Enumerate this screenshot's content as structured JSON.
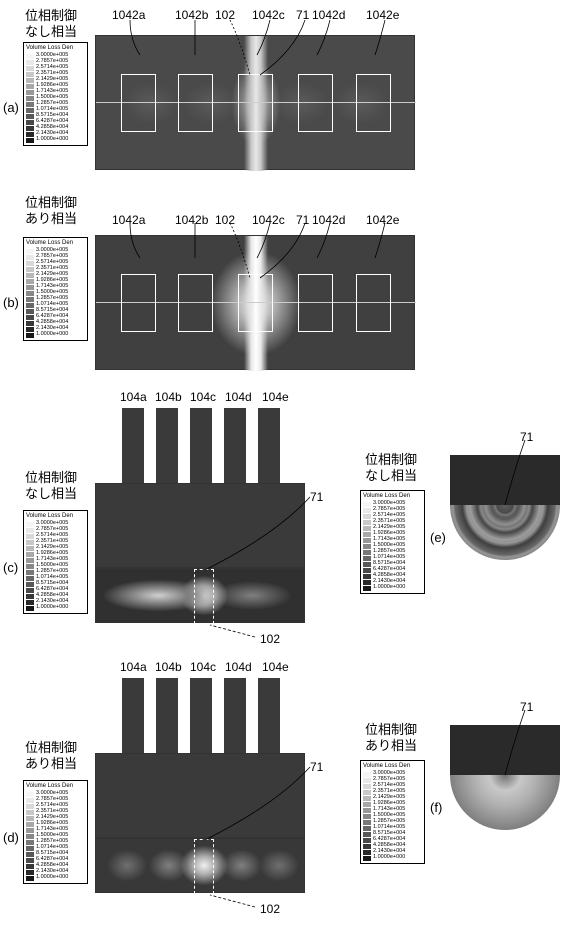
{
  "legend": {
    "title": "Volume Loss Den",
    "entries": [
      {
        "val": "3.0000e+005",
        "color": "#f5f5f5"
      },
      {
        "val": "2.7857e+005",
        "color": "#e8e8e8"
      },
      {
        "val": "2.5714e+005",
        "color": "#d8d8d8"
      },
      {
        "val": "2.3571e+005",
        "color": "#c8c8c8"
      },
      {
        "val": "2.1429e+005",
        "color": "#b8b8b8"
      },
      {
        "val": "1.9286e+005",
        "color": "#a8a8a8"
      },
      {
        "val": "1.7143e+005",
        "color": "#989898"
      },
      {
        "val": "1.5000e+005",
        "color": "#888888"
      },
      {
        "val": "1.2857e+005",
        "color": "#787878"
      },
      {
        "val": "1.0714e+005",
        "color": "#686868"
      },
      {
        "val": "8.5715e+004",
        "color": "#585858"
      },
      {
        "val": "6.4287e+004",
        "color": "#484848"
      },
      {
        "val": "4.2858e+004",
        "color": "#383838"
      },
      {
        "val": "2.1430e+004",
        "color": "#282828"
      },
      {
        "val": "1.0000e+000",
        "color": "#181818"
      }
    ]
  },
  "titles": {
    "noPhase": "位相制御\nなし相当",
    "withPhase": "位相制御\nあり相当"
  },
  "panels": {
    "a": {
      "label": "(a)",
      "topLabels": [
        "1042a",
        "1042b",
        "102",
        "1042c",
        "71",
        "1042d",
        "1042e"
      ],
      "rectCount": 5,
      "bg": "#4a4a4a",
      "centerBright": true
    },
    "b": {
      "label": "(b)",
      "topLabels": [
        "1042a",
        "1042b",
        "102",
        "1042c",
        "71",
        "1042d",
        "1042e"
      ],
      "rectCount": 5,
      "bg": "#404040",
      "centerBright": true
    },
    "c": {
      "label": "(c)",
      "topLabels": [
        "104a",
        "104b",
        "104c",
        "104d",
        "104e"
      ],
      "ptr71": "71",
      "ptr102": "102",
      "barCount": 5
    },
    "d": {
      "label": "(d)",
      "topLabels": [
        "104a",
        "104b",
        "104c",
        "104d",
        "104e"
      ],
      "ptr71": "71",
      "ptr102": "102",
      "barCount": 5
    },
    "e": {
      "label": "(e)",
      "ptr71": "71"
    },
    "f": {
      "label": "(f)",
      "ptr71": "71"
    }
  }
}
